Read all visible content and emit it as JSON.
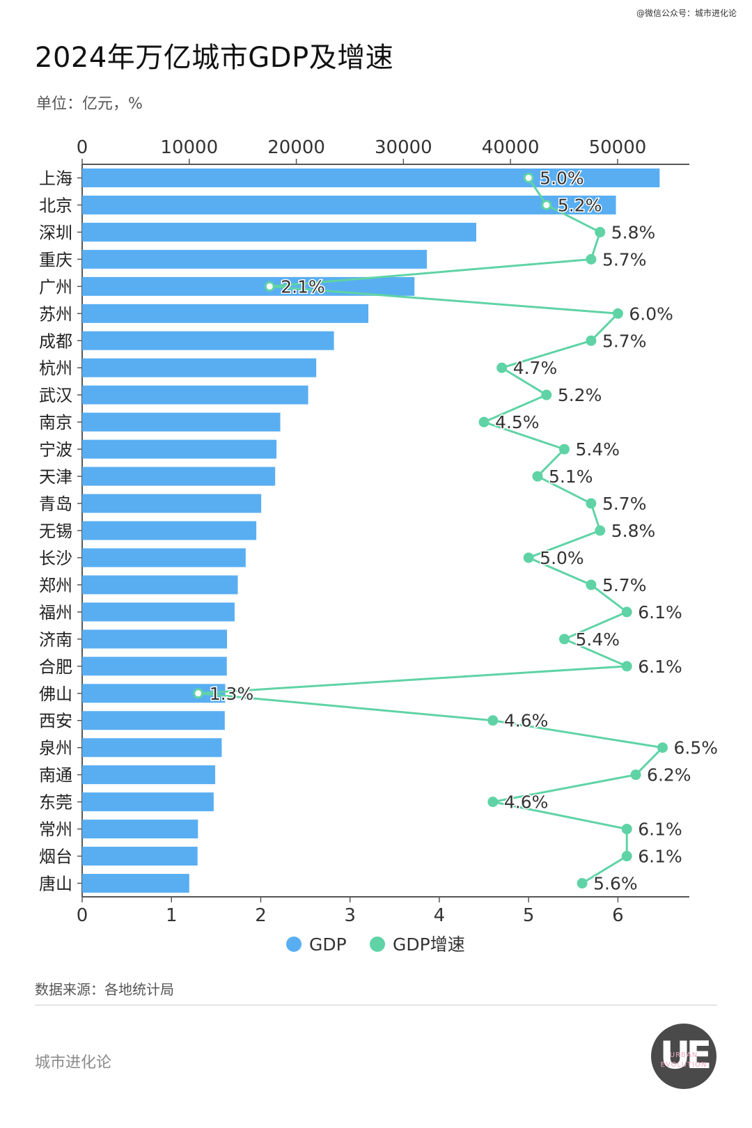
{
  "header": {
    "credit": "@微信公众号：城市进化论",
    "title": "2024年万亿城市GDP及增速",
    "unit": "单位：亿元，%"
  },
  "footer": {
    "source": "数据来源：各地统计局",
    "brand": "城市进化论",
    "logo_mark": "UE",
    "logo_sub_1": "URBAN",
    "logo_sub_2": "EVOLUTION"
  },
  "chart_data": {
    "type": "bar",
    "orientation": "horizontal",
    "categories": [
      "上海",
      "北京",
      "深圳",
      "重庆",
      "广州",
      "苏州",
      "成都",
      "杭州",
      "武汉",
      "南京",
      "宁波",
      "天津",
      "青岛",
      "无锡",
      "长沙",
      "郑州",
      "福州",
      "济南",
      "合肥",
      "佛山",
      "西安",
      "泉州",
      "南通",
      "东莞",
      "常州",
      "烟台",
      "唐山"
    ],
    "series": [
      {
        "name": "GDP",
        "type": "bar",
        "axis": "top",
        "color": "#59aef2",
        "values": [
          53927,
          49844,
          36802,
          32193,
          31033,
          26727,
          23511,
          21860,
          21106,
          18501,
          18148,
          18024,
          16720,
          16263,
          15269,
          14533,
          14237,
          13528,
          13508,
          13361,
          13318,
          13033,
          12422,
          12282,
          10813,
          10775,
          10000
        ]
      },
      {
        "name": "GDP增速",
        "type": "line",
        "axis": "bottom",
        "color": "#5fd3a5",
        "values": [
          5.0,
          5.2,
          5.8,
          5.7,
          2.1,
          6.0,
          5.7,
          4.7,
          5.2,
          4.5,
          5.4,
          5.1,
          5.7,
          5.8,
          5.0,
          5.7,
          6.1,
          5.4,
          6.1,
          1.3,
          4.6,
          6.5,
          6.2,
          4.6,
          6.1,
          6.1,
          5.6
        ],
        "labels": [
          "5.0%",
          "5.2%",
          "5.8%",
          "5.7%",
          "2.1%",
          "6.0%",
          "5.7%",
          "4.7%",
          "5.2%",
          "4.5%",
          "5.4%",
          "5.1%",
          "5.7%",
          "5.8%",
          "5.0%",
          "5.7%",
          "6.1%",
          "5.4%",
          "6.1%",
          "1.3%",
          "4.6%",
          "6.5%",
          "6.2%",
          "4.6%",
          "6.1%",
          "6.1%",
          "5.6%"
        ]
      }
    ],
    "top_axis": {
      "min": 0,
      "max": 56700,
      "ticks": [
        "0",
        "10000",
        "20000",
        "30000",
        "40000",
        "50000"
      ]
    },
    "bottom_axis": {
      "min": 0,
      "max": 6.8,
      "ticks": [
        "0",
        "1",
        "2",
        "3",
        "4",
        "5",
        "6"
      ]
    },
    "legend": {
      "position": "bottom-center",
      "items": [
        "GDP",
        "GDP增速"
      ]
    },
    "grid": false
  }
}
